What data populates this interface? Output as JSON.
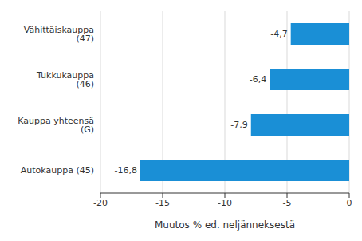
{
  "chart_data": {
    "type": "bar",
    "orientation": "horizontal",
    "x_label": "Muutos % ed. neljänneksestä",
    "categories": [
      "Vähittäiskauppa (47)",
      "Tukkukauppa (46)",
      "Kauppa yhteensä (G)",
      "Autokauppa (45)"
    ],
    "values": [
      -4.7,
      -6.4,
      -7.9,
      -16.8
    ],
    "value_labels": [
      "-4,7",
      "-6,4",
      "-7,9",
      "-16,8"
    ],
    "data_labels": true,
    "color": "#1a8fd6",
    "xlim": [
      -20,
      0
    ],
    "xticks": [
      -20,
      -15,
      -10,
      -5,
      0
    ],
    "grid": true
  }
}
